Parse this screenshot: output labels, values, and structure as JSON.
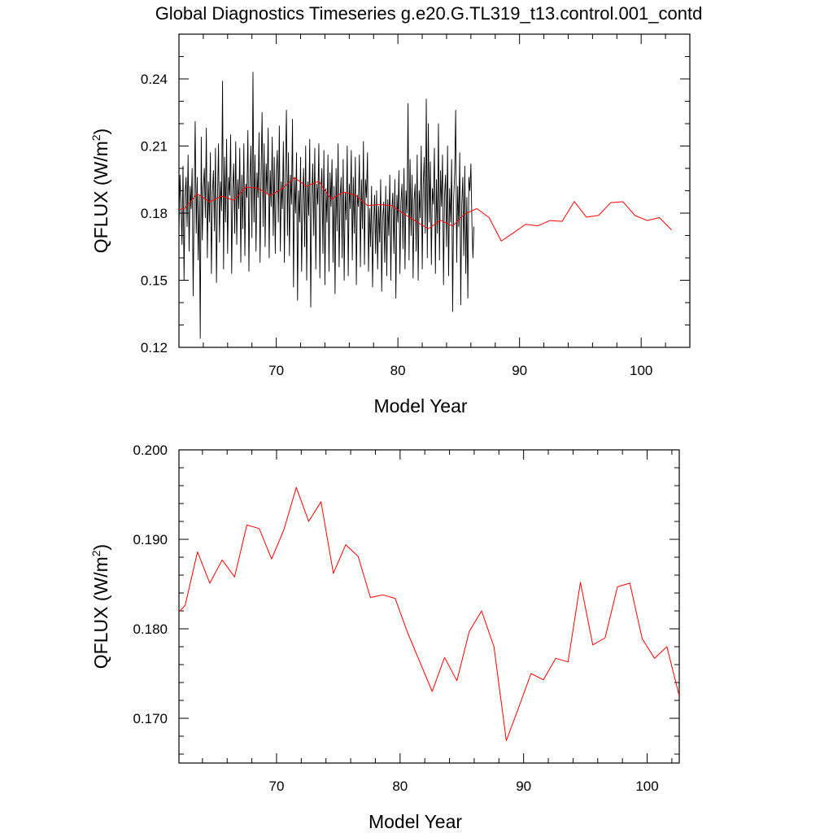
{
  "title": "Global Diagnostics Timeseries g.e20.G.TL319_t13.control.001_contd",
  "colors": {
    "monthly": "#000000",
    "annual": "#ff0000",
    "axis": "#000000",
    "background": "#ffffff"
  },
  "chart_data": [
    {
      "type": "line",
      "name": "top-panel",
      "xlabel": "Model Year",
      "ylabel_main": "QFLUX (W/m",
      "ylabel_sup": "2",
      "ylabel_close": ")",
      "xlim": [
        62,
        104
      ],
      "ylim": [
        0.12,
        0.26
      ],
      "xticks": [
        70,
        80,
        90,
        100
      ],
      "xtick_labels": [
        "70",
        "80",
        "90",
        "100"
      ],
      "yticks": [
        0.12,
        0.15,
        0.18,
        0.21,
        0.24
      ],
      "ytick_labels": [
        "0.12",
        "0.15",
        "0.18",
        "0.21",
        "0.24"
      ],
      "series": [
        {
          "name": "monthly",
          "color": "#000000",
          "x_start": 62.0,
          "x_step": 0.0833333,
          "values": [
            0.171,
            0.197,
            0.184,
            0.166,
            0.201,
            0.15,
            0.188,
            0.196,
            0.174,
            0.206,
            0.163,
            0.192,
            0.182,
            0.2,
            0.143,
            0.186,
            0.221,
            0.171,
            0.196,
            0.159,
            0.188,
            0.124,
            0.214,
            0.168,
            0.191,
            0.2,
            0.178,
            0.218,
            0.16,
            0.194,
            0.176,
            0.207,
            0.153,
            0.189,
            0.199,
            0.172,
            0.209,
            0.149,
            0.186,
            0.211,
            0.167,
            0.194,
            0.181,
            0.239,
            0.155,
            0.205,
            0.176,
            0.213,
            0.162,
            0.196,
            0.188,
            0.215,
            0.153,
            0.19,
            0.202,
            0.171,
            0.212,
            0.166,
            0.195,
            0.182,
            0.209,
            0.158,
            0.197,
            0.173,
            0.211,
            0.161,
            0.193,
            0.187,
            0.217,
            0.154,
            0.195,
            0.21,
            0.169,
            0.243,
            0.176,
            0.206,
            0.163,
            0.198,
            0.187,
            0.216,
            0.158,
            0.196,
            0.225,
            0.174,
            0.211,
            0.165,
            0.202,
            0.189,
            0.218,
            0.16,
            0.199,
            0.183,
            0.214,
            0.17,
            0.205,
            0.162,
            0.197,
            0.208,
            0.176,
            0.219,
            0.163,
            0.194,
            0.182,
            0.212,
            0.158,
            0.199,
            0.226,
            0.17,
            0.207,
            0.161,
            0.197,
            0.184,
            0.222,
            0.147,
            0.196,
            0.18,
            0.207,
            0.141,
            0.19,
            0.176,
            0.205,
            0.154,
            0.187,
            0.2,
            0.165,
            0.21,
            0.15,
            0.194,
            0.179,
            0.213,
            0.138,
            0.187,
            0.202,
            0.17,
            0.209,
            0.155,
            0.193,
            0.184,
            0.211,
            0.151,
            0.19,
            0.2,
            0.162,
            0.208,
            0.148,
            0.191,
            0.176,
            0.206,
            0.154,
            0.198,
            0.183,
            0.204,
            0.158,
            0.192,
            0.144,
            0.2,
            0.172,
            0.211,
            0.156,
            0.187,
            0.196,
            0.16,
            0.204,
            0.15,
            0.189,
            0.177,
            0.21,
            0.152,
            0.193,
            0.182,
            0.208,
            0.159,
            0.196,
            0.171,
            0.205,
            0.148,
            0.188,
            0.183,
            0.206,
            0.156,
            0.195,
            0.173,
            0.212,
            0.157,
            0.195,
            0.187,
            0.207,
            0.154,
            0.182,
            0.165,
            0.192,
            0.147,
            0.175,
            0.188,
            0.162,
            0.19,
            0.155,
            0.183,
            0.167,
            0.195,
            0.145,
            0.178,
            0.185,
            0.158,
            0.192,
            0.152,
            0.186,
            0.17,
            0.197,
            0.15,
            0.182,
            0.189,
            0.162,
            0.195,
            0.142,
            0.188,
            0.176,
            0.199,
            0.153,
            0.185,
            0.193,
            0.164,
            0.2,
            0.155,
            0.19,
            0.18,
            0.229,
            0.159,
            0.204,
            0.17,
            0.197,
            0.151,
            0.186,
            0.193,
            0.163,
            0.206,
            0.15,
            0.19,
            0.178,
            0.21,
            0.155,
            0.193,
            0.205,
            0.171,
            0.231,
            0.16,
            0.22,
            0.176,
            0.203,
            0.157,
            0.191,
            0.184,
            0.209,
            0.153,
            0.195,
            0.171,
            0.22,
            0.159,
            0.199,
            0.183,
            0.206,
            0.148,
            0.188,
            0.197,
            0.165,
            0.21,
            0.152,
            0.191,
            0.176,
            0.204,
            0.136,
            0.186,
            0.198,
            0.226,
            0.158,
            0.192,
            0.174,
            0.207,
            0.139,
            0.184,
            0.196,
            0.161,
            0.201,
            0.153,
            0.187,
            0.142,
            0.196,
            0.19,
            0.202,
            0.176,
            0.16,
            0.174
          ]
        },
        {
          "name": "annual",
          "color": "#ff0000",
          "x": [
            62.0,
            62.5,
            63.5,
            64.5,
            65.5,
            66.5,
            67.5,
            68.5,
            69.5,
            70.5,
            71.5,
            72.5,
            73.5,
            74.5,
            75.5,
            76.5,
            77.5,
            78.5,
            79.5,
            80.5,
            81.5,
            82.5,
            83.5,
            84.5,
            85.5,
            86.5,
            87.5,
            88.5,
            89.5,
            90.5,
            91.5,
            92.5,
            93.5,
            94.5,
            95.5,
            96.5,
            97.5,
            98.5,
            99.5,
            100.5,
            101.5,
            102.5
          ],
          "values": [
            0.1815,
            0.1822,
            0.1887,
            0.185,
            0.1876,
            0.1858,
            0.1916,
            0.1912,
            0.1878,
            0.1911,
            0.1958,
            0.192,
            0.1943,
            0.1862,
            0.1894,
            0.1881,
            0.1834,
            0.1838,
            0.1834,
            0.1796,
            0.1763,
            0.173,
            0.1768,
            0.1742,
            0.1797,
            0.182,
            0.178,
            0.1675,
            0.1712,
            0.175,
            0.1743,
            0.1767,
            0.1763,
            0.1852,
            0.1782,
            0.179,
            0.1847,
            0.1851,
            0.1789,
            0.1767,
            0.178,
            0.1725
          ]
        }
      ]
    },
    {
      "type": "line",
      "name": "bottom-panel",
      "xlabel": "Model Year",
      "ylabel_main": "QFLUX (W/m",
      "ylabel_sup": "2",
      "ylabel_close": ")",
      "xlim": [
        62.1,
        102.6
      ],
      "ylim": [
        0.165,
        0.2
      ],
      "xticks": [
        70,
        80,
        90,
        100
      ],
      "xtick_labels": [
        "70",
        "80",
        "90",
        "100"
      ],
      "yticks": [
        0.17,
        0.18,
        0.19,
        0.2
      ],
      "ytick_labels": [
        "0.170",
        "0.180",
        "0.190",
        "0.200"
      ],
      "series": [
        {
          "name": "annual",
          "color": "#ff0000",
          "x": [
            62.1,
            62.6,
            63.6,
            64.6,
            65.6,
            66.6,
            67.6,
            68.6,
            69.6,
            70.6,
            71.6,
            72.6,
            73.6,
            74.6,
            75.6,
            76.6,
            77.6,
            78.6,
            79.6,
            80.6,
            81.6,
            82.6,
            83.6,
            84.6,
            85.6,
            86.6,
            87.6,
            88.6,
            89.6,
            90.6,
            91.6,
            92.6,
            93.6,
            94.6,
            95.6,
            96.6,
            97.6,
            98.6,
            99.6,
            100.6,
            101.6,
            102.6
          ],
          "values": [
            0.1819,
            0.1826,
            0.1886,
            0.1851,
            0.1877,
            0.1858,
            0.1916,
            0.1912,
            0.1878,
            0.1911,
            0.1958,
            0.192,
            0.1942,
            0.1862,
            0.1894,
            0.1881,
            0.1835,
            0.1838,
            0.1834,
            0.1796,
            0.1763,
            0.173,
            0.1768,
            0.1742,
            0.1797,
            0.182,
            0.178,
            0.1675,
            0.1712,
            0.175,
            0.1743,
            0.1767,
            0.1763,
            0.1852,
            0.1782,
            0.179,
            0.1847,
            0.1851,
            0.1789,
            0.1767,
            0.178,
            0.1725
          ]
        }
      ]
    }
  ]
}
